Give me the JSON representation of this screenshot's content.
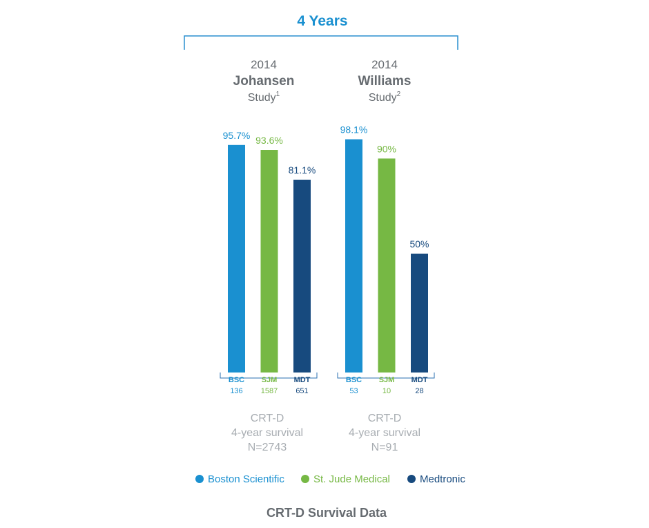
{
  "header": {
    "label": "4 Years"
  },
  "colors": {
    "bsc": "#1a90d0",
    "sjm": "#76b844",
    "mdt": "#174a7e",
    "bracket": "#2a8fcf",
    "axis": "#2a6fb0"
  },
  "chart_data": {
    "type": "bar",
    "title": "CRT-D Survival Data",
    "unit": "%",
    "ylim": [
      0,
      100
    ],
    "grid": false,
    "legend_position": "bottom",
    "legend": [
      {
        "name": "Boston Scientific",
        "color": "#1a90d0"
      },
      {
        "name": "St. Jude Medical",
        "color": "#76b844"
      },
      {
        "name": "Medtronic",
        "color": "#174a7e"
      }
    ],
    "groups": [
      {
        "year": "2014",
        "name": "Johansen",
        "subtitle": "Study",
        "ref": "1",
        "footer": [
          "CRT-D",
          "4-year survival",
          "N=2743"
        ],
        "bars": [
          {
            "category": "BSC",
            "n": "136",
            "value": 95.7,
            "label": "95.7%",
            "color": "#1a90d0"
          },
          {
            "category": "SJM",
            "n": "1587",
            "value": 93.6,
            "label": "93.6%",
            "color": "#76b844"
          },
          {
            "category": "MDT",
            "n": "651",
            "value": 81.1,
            "label": "81.1%",
            "color": "#174a7e"
          }
        ]
      },
      {
        "year": "2014",
        "name": "Williams",
        "subtitle": "Study",
        "ref": "2",
        "footer": [
          "CRT-D",
          "4-year survival",
          "N=91"
        ],
        "bars": [
          {
            "category": "BSC",
            "n": "53",
            "value": 98.1,
            "label": "98.1%",
            "color": "#1a90d0"
          },
          {
            "category": "SJM",
            "n": "10",
            "value": 90,
            "label": "90%",
            "color": "#76b844"
          },
          {
            "category": "MDT",
            "n": "28",
            "value": 50,
            "label": "50%",
            "color": "#174a7e"
          }
        ]
      }
    ]
  }
}
